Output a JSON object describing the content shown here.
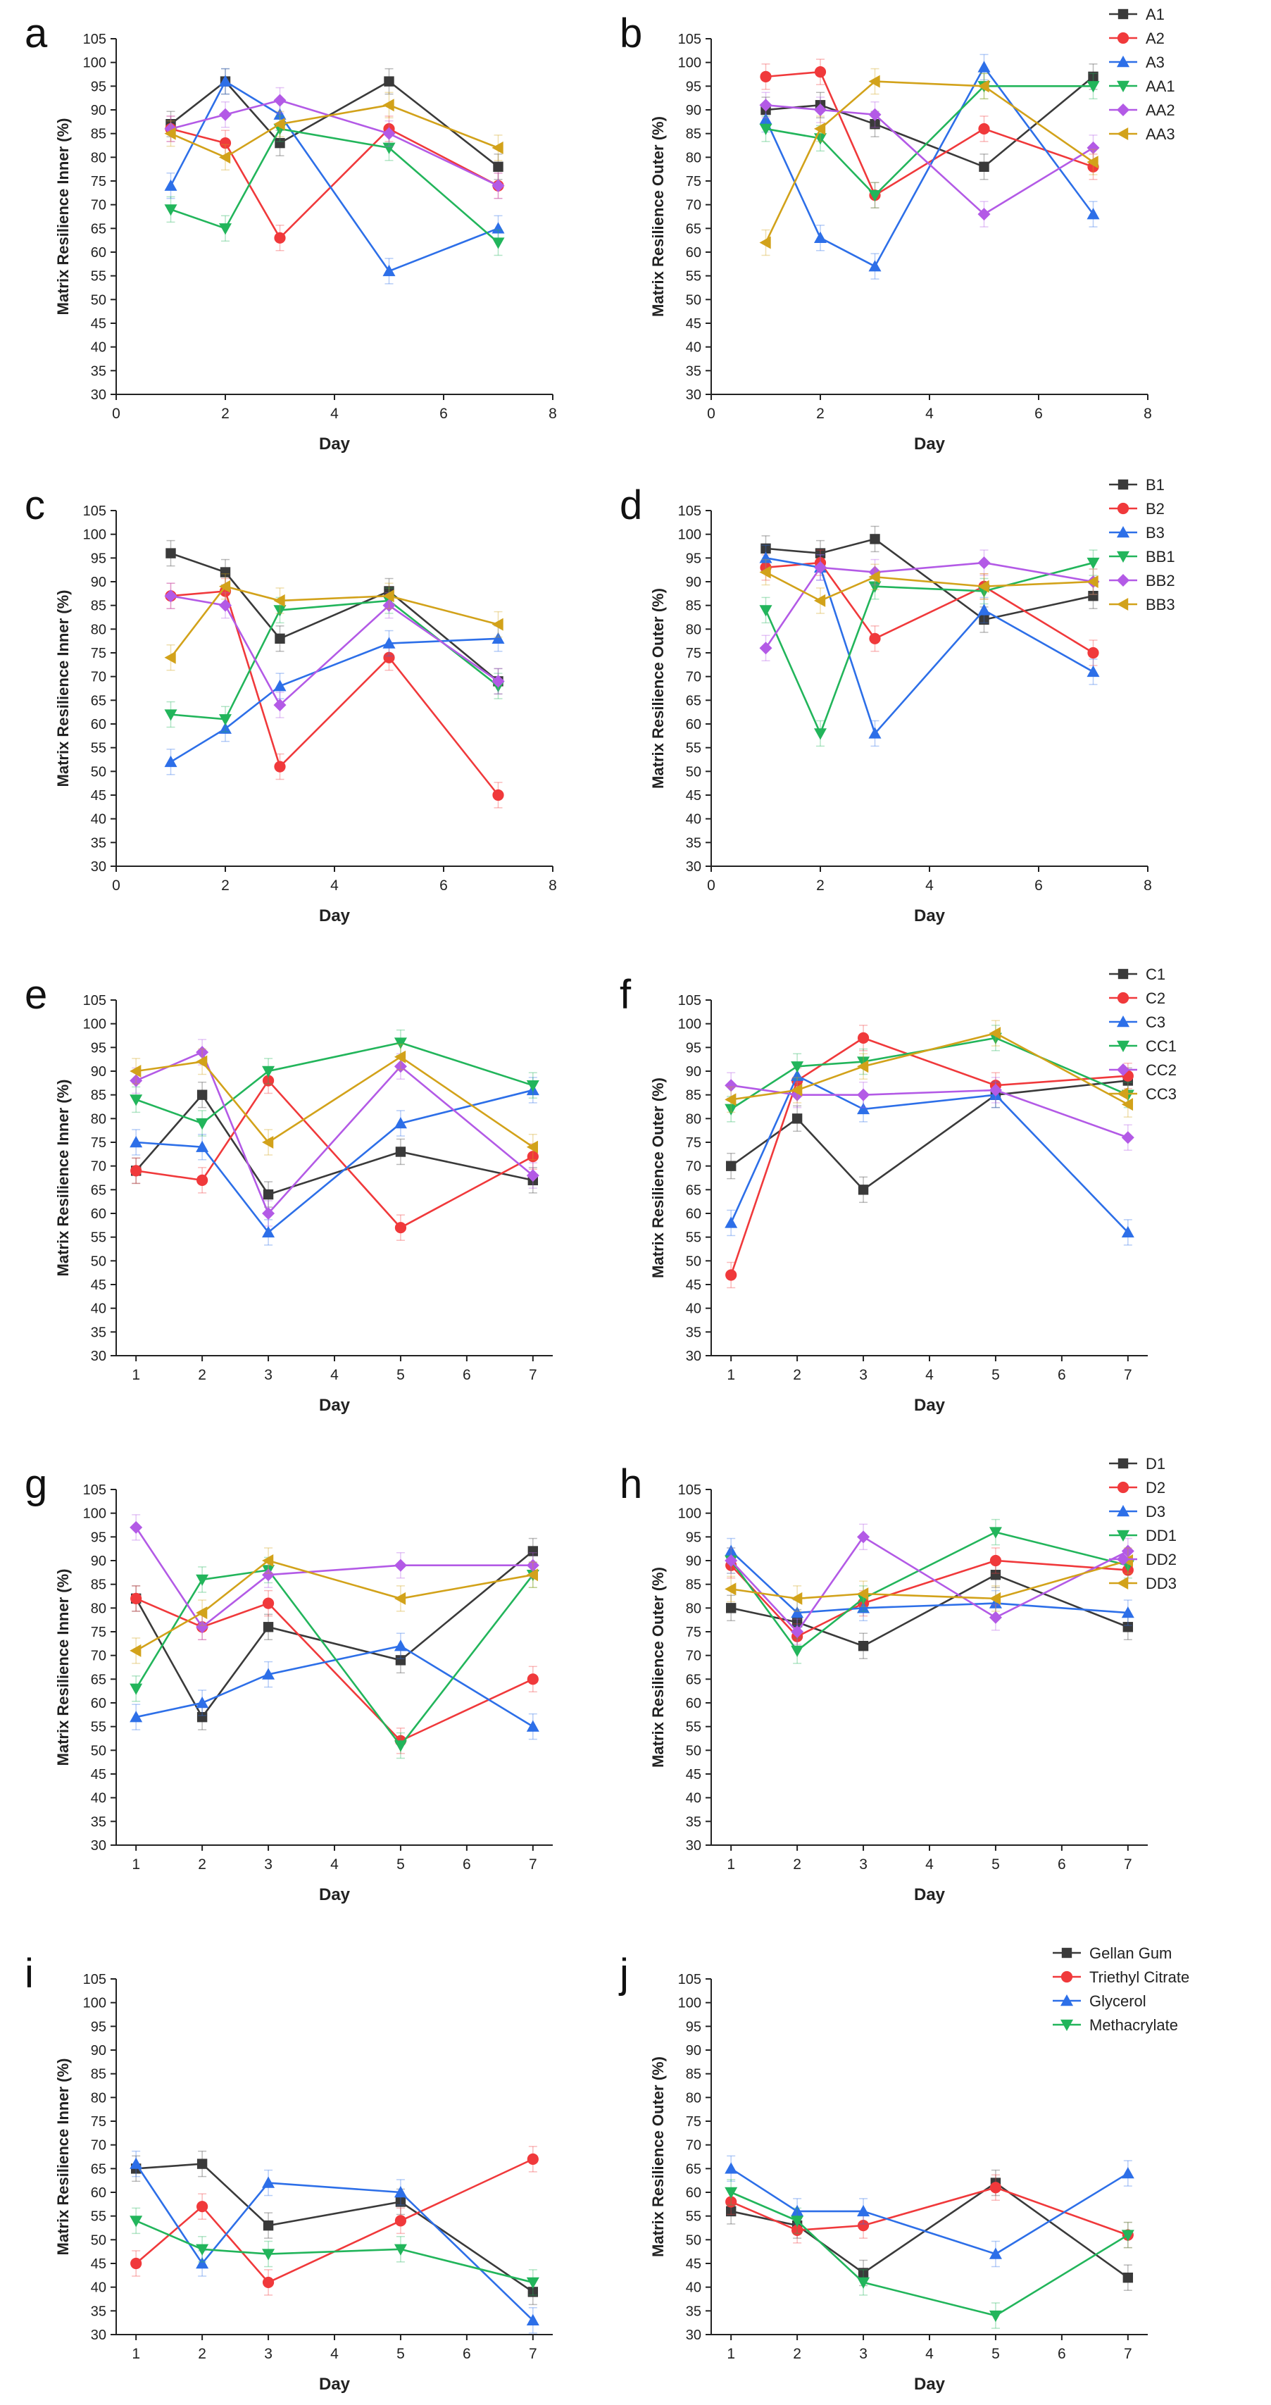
{
  "figure": {
    "colors": {
      "black": "#3a3a3a",
      "red": "#f0393b",
      "blue": "#2d6fe8",
      "green": "#22b55b",
      "purple": "#b35ae6",
      "gold": "#d2a21a"
    },
    "marker_legend": [
      "square",
      "circle",
      "triangle-up",
      "triangle-down",
      "diamond",
      "triangle-left"
    ]
  },
  "chart_data": [
    {
      "id": "a",
      "panel_label": "a",
      "type": "line",
      "xlabel": "Day",
      "ylabel": "Matrix Resilience Inner (%)",
      "xlim": [
        0,
        8
      ],
      "xticks": [
        0,
        2,
        4,
        6,
        8
      ],
      "ylim": [
        30,
        105
      ],
      "yticks": [
        30,
        35,
        40,
        45,
        50,
        55,
        60,
        65,
        70,
        75,
        80,
        85,
        90,
        95,
        100,
        105
      ],
      "x": [
        1,
        2,
        3,
        5,
        7
      ],
      "series": [
        {
          "name": "A1",
          "color": "black",
          "marker": "square",
          "values": [
            87,
            96,
            83,
            96,
            78
          ]
        },
        {
          "name": "A2",
          "color": "red",
          "marker": "circle",
          "values": [
            86,
            83,
            63,
            86,
            74
          ]
        },
        {
          "name": "A3",
          "color": "blue",
          "marker": "triangle-up",
          "values": [
            74,
            96,
            89,
            56,
            65
          ]
        },
        {
          "name": "AA1",
          "color": "green",
          "marker": "triangle-down",
          "values": [
            69,
            65,
            86,
            82,
            62
          ]
        },
        {
          "name": "AA2",
          "color": "purple",
          "marker": "diamond",
          "values": [
            86,
            89,
            92,
            85,
            74
          ]
        },
        {
          "name": "AA3",
          "color": "gold",
          "marker": "triangle-left",
          "values": [
            85,
            80,
            87,
            91,
            82
          ]
        }
      ]
    },
    {
      "id": "b",
      "panel_label": "b",
      "type": "line",
      "xlabel": "Day",
      "ylabel": "Matrix Resilience Outer (%)",
      "xlim": [
        0,
        8
      ],
      "xticks": [
        0,
        2,
        4,
        6,
        8
      ],
      "ylim": [
        30,
        105
      ],
      "yticks": [
        30,
        35,
        40,
        45,
        50,
        55,
        60,
        65,
        70,
        75,
        80,
        85,
        90,
        95,
        100,
        105
      ],
      "x": [
        1,
        2,
        3,
        5,
        7
      ],
      "legend": [
        "A1",
        "A2",
        "A3",
        "AA1",
        "AA2",
        "AA3"
      ],
      "series": [
        {
          "name": "A1",
          "color": "black",
          "marker": "square",
          "values": [
            90,
            91,
            87,
            78,
            97
          ]
        },
        {
          "name": "A2",
          "color": "red",
          "marker": "circle",
          "values": [
            97,
            98,
            72,
            86,
            78
          ]
        },
        {
          "name": "A3",
          "color": "blue",
          "marker": "triangle-up",
          "values": [
            88,
            63,
            57,
            99,
            68
          ]
        },
        {
          "name": "AA1",
          "color": "green",
          "marker": "triangle-down",
          "values": [
            86,
            84,
            72,
            95,
            95
          ]
        },
        {
          "name": "AA2",
          "color": "purple",
          "marker": "diamond",
          "values": [
            91,
            90,
            89,
            68,
            82
          ]
        },
        {
          "name": "AA3",
          "color": "gold",
          "marker": "triangle-left",
          "values": [
            62,
            86,
            96,
            95,
            79
          ]
        }
      ]
    },
    {
      "id": "c",
      "panel_label": "c",
      "type": "line",
      "xlabel": "Day",
      "ylabel": "Matrix Resilience Inner (%)",
      "xlim": [
        0,
        8
      ],
      "xticks": [
        0,
        2,
        4,
        6,
        8
      ],
      "ylim": [
        30,
        105
      ],
      "yticks": [
        30,
        35,
        40,
        45,
        50,
        55,
        60,
        65,
        70,
        75,
        80,
        85,
        90,
        95,
        100,
        105
      ],
      "x": [
        1,
        2,
        3,
        5,
        7
      ],
      "series": [
        {
          "name": "B1",
          "color": "black",
          "marker": "square",
          "values": [
            96,
            92,
            78,
            88,
            69
          ]
        },
        {
          "name": "B2",
          "color": "red",
          "marker": "circle",
          "values": [
            87,
            88,
            51,
            74,
            45
          ]
        },
        {
          "name": "B3",
          "color": "blue",
          "marker": "triangle-up",
          "values": [
            52,
            59,
            68,
            77,
            78
          ]
        },
        {
          "name": "BB1",
          "color": "green",
          "marker": "triangle-down",
          "values": [
            62,
            61,
            84,
            86,
            68
          ]
        },
        {
          "name": "BB2",
          "color": "purple",
          "marker": "diamond",
          "values": [
            87,
            85,
            64,
            85,
            69
          ]
        },
        {
          "name": "BB3",
          "color": "gold",
          "marker": "triangle-left",
          "values": [
            74,
            89,
            86,
            87,
            81
          ]
        }
      ]
    },
    {
      "id": "d",
      "panel_label": "d",
      "type": "line",
      "xlabel": "Day",
      "ylabel": "Matrix Resilience Outer (%)",
      "xlim": [
        0,
        8
      ],
      "xticks": [
        0,
        2,
        4,
        6,
        8
      ],
      "ylim": [
        30,
        105
      ],
      "yticks": [
        30,
        35,
        40,
        45,
        50,
        55,
        60,
        65,
        70,
        75,
        80,
        85,
        90,
        95,
        100,
        105
      ],
      "x": [
        1,
        2,
        3,
        5,
        7
      ],
      "legend": [
        "B1",
        "B2",
        "B3",
        "BB1",
        "BB2",
        "BB3"
      ],
      "series": [
        {
          "name": "B1",
          "color": "black",
          "marker": "square",
          "values": [
            97,
            96,
            99,
            82,
            87
          ]
        },
        {
          "name": "B2",
          "color": "red",
          "marker": "circle",
          "values": [
            93,
            94,
            78,
            89,
            75
          ]
        },
        {
          "name": "B3",
          "color": "blue",
          "marker": "triangle-up",
          "values": [
            95,
            93,
            58,
            84,
            71
          ]
        },
        {
          "name": "BB1",
          "color": "green",
          "marker": "triangle-down",
          "values": [
            84,
            58,
            89,
            88,
            94
          ]
        },
        {
          "name": "BB2",
          "color": "purple",
          "marker": "diamond",
          "values": [
            76,
            93,
            92,
            94,
            90
          ]
        },
        {
          "name": "BB3",
          "color": "gold",
          "marker": "triangle-left",
          "values": [
            92,
            86,
            91,
            89,
            90
          ]
        }
      ]
    },
    {
      "id": "e",
      "panel_label": "e",
      "type": "line",
      "xlabel": "Day",
      "ylabel": "Matrix Resilience Inner (%)",
      "xlim": [
        0.7,
        7.3
      ],
      "xticks": [
        1,
        2,
        3,
        4,
        5,
        6,
        7
      ],
      "ylim": [
        30,
        105
      ],
      "yticks": [
        30,
        35,
        40,
        45,
        50,
        55,
        60,
        65,
        70,
        75,
        80,
        85,
        90,
        95,
        100,
        105
      ],
      "x": [
        1,
        2,
        3,
        5,
        7
      ],
      "series": [
        {
          "name": "C1",
          "color": "black",
          "marker": "square",
          "values": [
            69,
            85,
            64,
            73,
            67
          ]
        },
        {
          "name": "C2",
          "color": "red",
          "marker": "circle",
          "values": [
            69,
            67,
            88,
            57,
            72
          ]
        },
        {
          "name": "C3",
          "color": "blue",
          "marker": "triangle-up",
          "values": [
            75,
            74,
            56,
            79,
            86
          ]
        },
        {
          "name": "CC1",
          "color": "green",
          "marker": "triangle-down",
          "values": [
            84,
            79,
            90,
            96,
            87
          ]
        },
        {
          "name": "CC2",
          "color": "purple",
          "marker": "diamond",
          "values": [
            88,
            94,
            60,
            91,
            68
          ]
        },
        {
          "name": "CC3",
          "color": "gold",
          "marker": "triangle-left",
          "values": [
            90,
            92,
            75,
            93,
            74
          ]
        }
      ]
    },
    {
      "id": "f",
      "panel_label": "f",
      "type": "line",
      "xlabel": "Day",
      "ylabel": "Matrix Resilience Outer (%)",
      "xlim": [
        0.7,
        7.3
      ],
      "xticks": [
        1,
        2,
        3,
        4,
        5,
        6,
        7
      ],
      "ylim": [
        30,
        105
      ],
      "yticks": [
        30,
        35,
        40,
        45,
        50,
        55,
        60,
        65,
        70,
        75,
        80,
        85,
        90,
        95,
        100,
        105
      ],
      "x": [
        1,
        2,
        3,
        5,
        7
      ],
      "legend": [
        "C1",
        "C2",
        "C3",
        "CC1",
        "CC2",
        "CC3"
      ],
      "series": [
        {
          "name": "C1",
          "color": "black",
          "marker": "square",
          "values": [
            70,
            80,
            65,
            85,
            88
          ]
        },
        {
          "name": "C2",
          "color": "red",
          "marker": "circle",
          "values": [
            47,
            88,
            97,
            87,
            89
          ]
        },
        {
          "name": "C3",
          "color": "blue",
          "marker": "triangle-up",
          "values": [
            58,
            89,
            82,
            85,
            56
          ]
        },
        {
          "name": "CC1",
          "color": "green",
          "marker": "triangle-down",
          "values": [
            82,
            91,
            92,
            97,
            85
          ]
        },
        {
          "name": "CC2",
          "color": "purple",
          "marker": "diamond",
          "values": [
            87,
            85,
            85,
            86,
            76
          ]
        },
        {
          "name": "CC3",
          "color": "gold",
          "marker": "triangle-left",
          "values": [
            84,
            86,
            91,
            98,
            83
          ]
        }
      ]
    },
    {
      "id": "g",
      "panel_label": "g",
      "type": "line",
      "xlabel": "Day",
      "ylabel": "Matrix Resilience Inner (%)",
      "xlim": [
        0.7,
        7.3
      ],
      "xticks": [
        1,
        2,
        3,
        4,
        5,
        6,
        7
      ],
      "ylim": [
        30,
        105
      ],
      "yticks": [
        30,
        35,
        40,
        45,
        50,
        55,
        60,
        65,
        70,
        75,
        80,
        85,
        90,
        95,
        100,
        105
      ],
      "x": [
        1,
        2,
        3,
        5,
        7
      ],
      "series": [
        {
          "name": "D1",
          "color": "black",
          "marker": "square",
          "values": [
            82,
            57,
            76,
            69,
            92
          ]
        },
        {
          "name": "D2",
          "color": "red",
          "marker": "circle",
          "values": [
            82,
            76,
            81,
            52,
            65
          ]
        },
        {
          "name": "D3",
          "color": "blue",
          "marker": "triangle-up",
          "values": [
            57,
            60,
            66,
            72,
            55
          ]
        },
        {
          "name": "DD1",
          "color": "green",
          "marker": "triangle-down",
          "values": [
            63,
            86,
            88,
            51,
            87
          ]
        },
        {
          "name": "DD2",
          "color": "purple",
          "marker": "diamond",
          "values": [
            97,
            76,
            87,
            89,
            89
          ]
        },
        {
          "name": "DD3",
          "color": "gold",
          "marker": "triangle-left",
          "values": [
            71,
            79,
            90,
            82,
            87
          ]
        }
      ]
    },
    {
      "id": "h",
      "panel_label": "h",
      "type": "line",
      "xlabel": "Day",
      "ylabel": "Matrix Resilience Outer (%)",
      "xlim": [
        0.7,
        7.3
      ],
      "xticks": [
        1,
        2,
        3,
        4,
        5,
        6,
        7
      ],
      "ylim": [
        30,
        105
      ],
      "yticks": [
        30,
        35,
        40,
        45,
        50,
        55,
        60,
        65,
        70,
        75,
        80,
        85,
        90,
        95,
        100,
        105
      ],
      "x": [
        1,
        2,
        3,
        5,
        7
      ],
      "legend": [
        "D1",
        "D2",
        "D3",
        "DD1",
        "DD2",
        "DD3"
      ],
      "series": [
        {
          "name": "D1",
          "color": "black",
          "marker": "square",
          "values": [
            80,
            77,
            72,
            87,
            76
          ]
        },
        {
          "name": "D2",
          "color": "red",
          "marker": "circle",
          "values": [
            89,
            74,
            81,
            90,
            88
          ]
        },
        {
          "name": "D3",
          "color": "blue",
          "marker": "triangle-up",
          "values": [
            92,
            79,
            80,
            81,
            79
          ]
        },
        {
          "name": "DD1",
          "color": "green",
          "marker": "triangle-down",
          "values": [
            90,
            71,
            82,
            96,
            89
          ]
        },
        {
          "name": "DD2",
          "color": "purple",
          "marker": "diamond",
          "values": [
            90,
            75,
            95,
            78,
            92
          ]
        },
        {
          "name": "DD3",
          "color": "gold",
          "marker": "triangle-left",
          "values": [
            84,
            82,
            83,
            82,
            90
          ]
        }
      ]
    },
    {
      "id": "i",
      "panel_label": "i",
      "type": "line",
      "xlabel": "Day",
      "ylabel": "Matrix Resilience Inner (%)",
      "xlim": [
        0.7,
        7.3
      ],
      "xticks": [
        1,
        2,
        3,
        4,
        5,
        6,
        7
      ],
      "ylim": [
        30,
        105
      ],
      "yticks": [
        30,
        35,
        40,
        45,
        50,
        55,
        60,
        65,
        70,
        75,
        80,
        85,
        90,
        95,
        100,
        105
      ],
      "x": [
        1,
        2,
        3,
        5,
        7
      ],
      "series": [
        {
          "name": "Gellan Gum",
          "color": "black",
          "marker": "square",
          "values": [
            65,
            66,
            53,
            58,
            39
          ]
        },
        {
          "name": "Triethyl Citrate",
          "color": "red",
          "marker": "circle",
          "values": [
            45,
            57,
            41,
            54,
            67
          ]
        },
        {
          "name": "Glycerol",
          "color": "blue",
          "marker": "triangle-up",
          "values": [
            66,
            45,
            62,
            60,
            33
          ]
        },
        {
          "name": "Methacrylate",
          "color": "green",
          "marker": "triangle-down",
          "values": [
            54,
            48,
            47,
            48,
            41
          ]
        }
      ]
    },
    {
      "id": "j",
      "panel_label": "j",
      "type": "line",
      "xlabel": "Day",
      "ylabel": "Matrix Resilience Outer (%)",
      "xlim": [
        0.7,
        7.3
      ],
      "xticks": [
        1,
        2,
        3,
        4,
        5,
        6,
        7
      ],
      "ylim": [
        30,
        105
      ],
      "yticks": [
        30,
        35,
        40,
        45,
        50,
        55,
        60,
        65,
        70,
        75,
        80,
        85,
        90,
        95,
        100,
        105
      ],
      "x": [
        1,
        2,
        3,
        5,
        7
      ],
      "legend": [
        "Gellan Gum",
        "Triethyl Citrate",
        "Glycerol",
        "Methacrylate"
      ],
      "series": [
        {
          "name": "Gellan Gum",
          "color": "black",
          "marker": "square",
          "values": [
            56,
            53,
            43,
            62,
            42
          ]
        },
        {
          "name": "Triethyl Citrate",
          "color": "red",
          "marker": "circle",
          "values": [
            58,
            52,
            53,
            61,
            51
          ]
        },
        {
          "name": "Glycerol",
          "color": "blue",
          "marker": "triangle-up",
          "values": [
            65,
            56,
            56,
            47,
            64
          ]
        },
        {
          "name": "Methacrylate",
          "color": "green",
          "marker": "triangle-down",
          "values": [
            60,
            54,
            41,
            34,
            51
          ]
        }
      ]
    }
  ]
}
